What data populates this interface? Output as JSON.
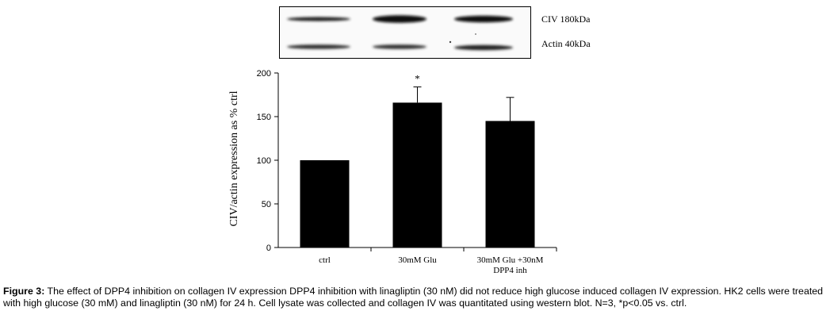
{
  "blot": {
    "labels": [
      "CIV 180kDa",
      "Actin 40kDa"
    ]
  },
  "chart_data": {
    "type": "bar",
    "categories": [
      "ctrl",
      "30mM Glu",
      "30mM Glu  +30nM\nDPP4 inh"
    ],
    "values": [
      100,
      166,
      145
    ],
    "error_bars": [
      0,
      18,
      27
    ],
    "annotations": [
      "",
      "*",
      ""
    ],
    "title": "",
    "xlabel": "",
    "ylabel": "CIV/actin expression as % ctrl",
    "ylim": [
      0,
      200
    ],
    "yticks": [
      0,
      50,
      100,
      150,
      200
    ],
    "bar_color": "#000000",
    "grid": false,
    "legend": "none"
  },
  "caption": {
    "label": "Figure 3:",
    "text": " The effect of DPP4 inhibition on collagen IV expression DPP4 inhibition with linagliptin (30 nM) did not reduce high glucose induced collagen IV expression. HK2 cells were treated with high glucose (30 mM) and linagliptin (30 nM) for 24 h. Cell lysate was collected and collagen IV was quantitated using western blot. N=3, *p<0.05 vs. ctrl."
  }
}
